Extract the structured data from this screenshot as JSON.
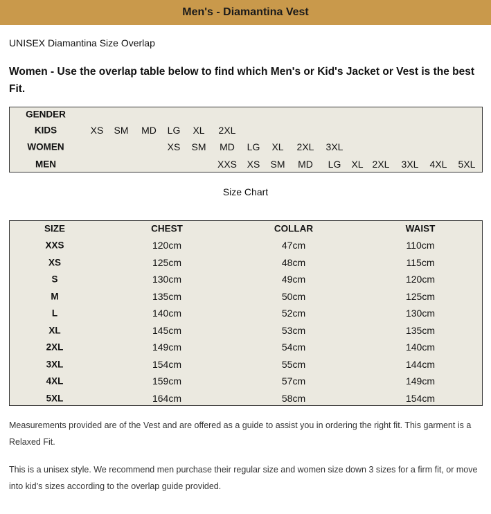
{
  "header": {
    "title": "Men's - Diamantina Vest"
  },
  "intro": "UNISEX Diamantina Size Overlap",
  "instruction": "Women - Use the overlap table below to find which Men's or Kid's Jacket or Vest is the best Fit.",
  "overlap": {
    "header": "GENDER",
    "rows": [
      {
        "label": "KIDS",
        "cells": [
          "XS",
          "SM",
          "MD",
          "LG",
          "XL",
          "2XL",
          null,
          null,
          null,
          null,
          null,
          null,
          null,
          null,
          null
        ]
      },
      {
        "label": "WOMEN",
        "cells": [
          null,
          null,
          null,
          "XS",
          "SM",
          "MD",
          "LG",
          "XL",
          "2XL",
          "3XL",
          null,
          null,
          null,
          null,
          null
        ]
      },
      {
        "label": "MEN",
        "cells": [
          null,
          null,
          null,
          null,
          null,
          "XXS",
          "XS",
          "SM",
          "MD",
          "LG",
          "XL",
          "2XL",
          "3XL",
          "4XL",
          "5XL"
        ]
      }
    ]
  },
  "size_chart": {
    "title": "Size Chart",
    "columns": [
      "SIZE",
      "CHEST",
      "COLLAR",
      "WAIST"
    ],
    "rows": [
      [
        "XXS",
        "120cm",
        "47cm",
        "110cm"
      ],
      [
        "XS",
        "125cm",
        "48cm",
        "115cm"
      ],
      [
        "S",
        "130cm",
        "49cm",
        "120cm"
      ],
      [
        "M",
        "135cm",
        "50cm",
        "125cm"
      ],
      [
        "L",
        "140cm",
        "52cm",
        "130cm"
      ],
      [
        "XL",
        "145cm",
        "53cm",
        "135cm"
      ],
      [
        "2XL",
        "149cm",
        "54cm",
        "140cm"
      ],
      [
        "3XL",
        "154cm",
        "55cm",
        "144cm"
      ],
      [
        "4XL",
        "159cm",
        "57cm",
        "149cm"
      ],
      [
        "5XL",
        "164cm",
        "58cm",
        "154cm"
      ]
    ]
  },
  "notes": [
    "Measurements provided are of the Vest and are offered as a guide to assist you in ordering the right fit. This garment is a Relaxed Fit.",
    "This is a unisex style. We recommend men purchase their regular size and women size down 3 sizes for a firm fit, or move into kid’s sizes according to the overlap guide provided."
  ]
}
